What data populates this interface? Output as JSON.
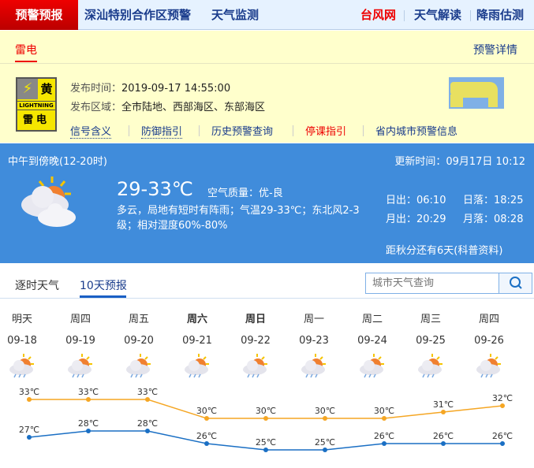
{
  "nav": {
    "brand": "预警预报",
    "links": [
      "深汕特别合作区预警",
      "天气监测"
    ],
    "right": [
      {
        "label": "台风网",
        "color": "#e00000"
      },
      {
        "label": "天气解读",
        "color": "#1a3c8c"
      },
      {
        "label": "降雨估测",
        "color": "#1a3c8c"
      }
    ]
  },
  "warning": {
    "tab": "雷电",
    "detail": "预警详情",
    "icon": {
      "level": "黄",
      "en": "LIGHTNING",
      "cn": "雷电",
      "color": "#f5e600"
    },
    "time_label": "发布时间：",
    "time": "2019-09-17 14:55:00",
    "area_label": "发布区域：",
    "area": "全市陆地、西部海区、东部海区",
    "links": [
      {
        "label": "信号含义",
        "color": "#1a3c8c"
      },
      {
        "label": "防御指引",
        "color": "#1a3c8c"
      },
      {
        "label": "历史预警查询",
        "color": "#1a3c8c"
      },
      {
        "label": "停课指引",
        "color": "#e00000"
      },
      {
        "label": "省内城市预警信息",
        "color": "#1a3c8c"
      }
    ]
  },
  "now": {
    "period": "中午到傍晚(12-20时)",
    "update": "更新时间：09月17日 10:12",
    "temp": "29-33℃",
    "aqi_label": "空气质量：",
    "aqi": "优-良",
    "desc": "多云，局地有短时有阵雨；气温29-33℃；东北风2-3级；相对湿度60%-80%",
    "sunrise": "日出：06:10",
    "sunset": "日落：18:25",
    "moonrise": "月出：20:29",
    "moonset": "月落：08:28",
    "countdown": "距秋分还有6天(科普资料)",
    "icon": "partly-cloudy-icon"
  },
  "tabs": [
    "逐时天气",
    "10天预报"
  ],
  "active_tab": 1,
  "search": {
    "placeholder": "城市天气查询",
    "icon": "search-icon"
  },
  "chart_data": {
    "type": "line",
    "categories": [
      "明天",
      "周四",
      "周五",
      "周六",
      "周日",
      "周一",
      "周二",
      "周三",
      "周四"
    ],
    "dates": [
      "09-18",
      "09-19",
      "09-20",
      "09-21",
      "09-22",
      "09-23",
      "09-24",
      "09-25",
      "09-26"
    ],
    "bold": [
      false,
      false,
      false,
      true,
      true,
      false,
      false,
      false,
      false
    ],
    "icons": [
      "sun-cloud-rain",
      "sun-cloud-rain",
      "sun-cloud-rain",
      "sun-cloud-rain",
      "sun-cloud-rain",
      "sun-cloud-rain",
      "sun-cloud-rain",
      "sun-cloud-rain",
      "sun-cloud-rain"
    ],
    "series": [
      {
        "values": [
          33,
          33,
          33,
          30,
          30,
          30,
          30,
          31,
          32
        ],
        "color": "#f5a623",
        "unit": "℃"
      },
      {
        "values": [
          27,
          28,
          28,
          26,
          25,
          25,
          26,
          26,
          26
        ],
        "color": "#1a6fc4",
        "unit": "℃"
      }
    ]
  }
}
